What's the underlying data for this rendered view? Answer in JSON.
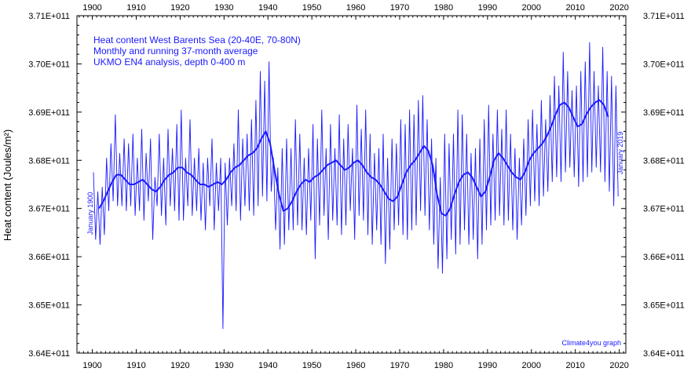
{
  "chart_data": {
    "type": "line",
    "title_lines": [
      "Heat content West Barents Sea (20-40E, 70-80N)",
      "Monthly and running 37-month average",
      "UKMO EN4 analysis, depth 0-400 m"
    ],
    "ylabel": "Heat content (Joules/m²)",
    "xlabel": "",
    "xlim": [
      1896.5,
      2021.5
    ],
    "ylim": [
      364000000000.0,
      371000000000.0
    ],
    "x_ticks": [
      1900,
      1910,
      1920,
      1930,
      1940,
      1950,
      1960,
      1970,
      1980,
      1990,
      2000,
      2010,
      2020
    ],
    "x_tick_labels": [
      "1900",
      "1910",
      "1920",
      "1930",
      "1940",
      "1950",
      "1960",
      "1970",
      "1980",
      "1990",
      "2000",
      "2010",
      "2020"
    ],
    "y_ticks": [
      364000000000.0,
      365000000000.0,
      366000000000.0,
      367000000000.0,
      368000000000.0,
      369000000000.0,
      370000000000.0,
      371000000000.0
    ],
    "y_tick_labels": [
      "3.64E+011",
      "3.65E+011",
      "3.66E+011",
      "3.67E+011",
      "3.68E+011",
      "3.69E+011",
      "3.70E+011",
      "3.71E+011"
    ],
    "left_annotation": "January 1900",
    "right_annotation": "January 2019",
    "credit": "Climate4you graph",
    "grid": false,
    "series": [
      {
        "style": "thin line",
        "color": "#1a1aff",
        "x": [
          1900,
          1901,
          1902,
          1903,
          1904,
          1905,
          1906,
          1907,
          1908,
          1909,
          1910,
          1911,
          1912,
          1913,
          1914,
          1915,
          1916,
          1917,
          1918,
          1919,
          1920,
          1921,
          1922,
          1923,
          1924,
          1925,
          1926,
          1927,
          1928,
          1929,
          1930,
          1931,
          1932,
          1933,
          1934,
          1935,
          1936,
          1937,
          1938,
          1939,
          1940,
          1941,
          1942,
          1943,
          1944,
          1945,
          1946,
          1947,
          1948,
          1949,
          1950,
          1951,
          1952,
          1953,
          1954,
          1955,
          1956,
          1957,
          1958,
          1959,
          1960,
          1961,
          1962,
          1963,
          1964,
          1965,
          1966,
          1967,
          1968,
          1969,
          1970,
          1971,
          1972,
          1973,
          1974,
          1975,
          1976,
          1977,
          1978,
          1979,
          1980,
          1981,
          1982,
          1983,
          1984,
          1985,
          1986,
          1987,
          1988,
          1989,
          1990,
          1991,
          1992,
          1993,
          1994,
          1995,
          1996,
          1997,
          1998,
          1999,
          2000,
          2001,
          2002,
          2003,
          2004,
          2005,
          2006,
          2007,
          2008,
          2009,
          2010,
          2011,
          2012,
          2013,
          2014,
          2015,
          2016,
          2017,
          2018,
          2019
        ],
        "high": [
          367750000000.0,
          367350000000.0,
          367450000000.0,
          368050000000.0,
          368350000000.0,
          368950000000.0,
          368150000000.0,
          368450000000.0,
          368350000000.0,
          368550000000.0,
          368050000000.0,
          368650000000.0,
          368150000000.0,
          368450000000.0,
          367650000000.0,
          368550000000.0,
          368050000000.0,
          368650000000.0,
          368250000000.0,
          368750000000.0,
          369050000000.0,
          368050000000.0,
          368850000000.0,
          368050000000.0,
          368250000000.0,
          367950000000.0,
          368050000000.0,
          368450000000.0,
          367950000000.0,
          368050000000.0,
          367950000000.0,
          368050000000.0,
          368350000000.0,
          369050000000.0,
          368450000000.0,
          368550000000.0,
          368850000000.0,
          369250000000.0,
          369850000000.0,
          369650000000.0,
          370050000000.0,
          368050000000.0,
          367850000000.0,
          368250000000.0,
          368450000000.0,
          368250000000.0,
          368850000000.0,
          368550000000.0,
          368050000000.0,
          368250000000.0,
          368750000000.0,
          368450000000.0,
          369050000000.0,
          368250000000.0,
          368750000000.0,
          368250000000.0,
          368950000000.0,
          368450000000.0,
          368750000000.0,
          368250000000.0,
          369150000000.0,
          368650000000.0,
          369050000000.0,
          368550000000.0,
          368150000000.0,
          368250000000.0,
          368550000000.0,
          368050000000.0,
          368450000000.0,
          368350000000.0,
          368850000000.0,
          368750000000.0,
          369050000000.0,
          368950000000.0,
          369250000000.0,
          369350000000.0,
          368850000000.0,
          368450000000.0,
          368050000000.0,
          367650000000.0,
          368550000000.0,
          368350000000.0,
          368550000000.0,
          369050000000.0,
          368950000000.0,
          368550000000.0,
          368150000000.0,
          368250000000.0,
          368450000000.0,
          368850000000.0,
          369150000000.0,
          368550000000.0,
          369050000000.0,
          368650000000.0,
          369050000000.0,
          368550000000.0,
          368250000000.0,
          368050000000.0,
          368450000000.0,
          368850000000.0,
          369050000000.0,
          368750000000.0,
          369250000000.0,
          368850000000.0,
          369350000000.0,
          369750000000.0,
          369550000000.0,
          370250000000.0,
          369850000000.0,
          369450000000.0,
          369550000000.0,
          369850000000.0,
          370050000000.0,
          370450000000.0,
          369850000000.0,
          369550000000.0,
          370350000000.0,
          369850000000.0,
          369750000000.0,
          369550000000.0
        ],
        "low": [
          366350000000.0,
          366250000000.0,
          366450000000.0,
          366950000000.0,
          367150000000.0,
          367050000000.0,
          367050000000.0,
          366950000000.0,
          367050000000.0,
          366850000000.0,
          366950000000.0,
          366750000000.0,
          367150000000.0,
          366350000000.0,
          367050000000.0,
          366850000000.0,
          366650000000.0,
          367050000000.0,
          366950000000.0,
          366750000000.0,
          366750000000.0,
          367050000000.0,
          366850000000.0,
          366950000000.0,
          366750000000.0,
          366550000000.0,
          367050000000.0,
          366550000000.0,
          366950000000.0,
          364500000000.0,
          366650000000.0,
          367050000000.0,
          366950000000.0,
          366750000000.0,
          367050000000.0,
          366950000000.0,
          366850000000.0,
          367050000000.0,
          367250000000.0,
          367150000000.0,
          367350000000.0,
          366550000000.0,
          366150000000.0,
          366250000000.0,
          366550000000.0,
          366550000000.0,
          366650000000.0,
          366550000000.0,
          366450000000.0,
          366750000000.0,
          365950000000.0,
          366650000000.0,
          366850000000.0,
          366350000000.0,
          366750000000.0,
          366650000000.0,
          366450000000.0,
          366650000000.0,
          366950000000.0,
          366350000000.0,
          366850000000.0,
          366750000000.0,
          366450000000.0,
          366250000000.0,
          366550000000.0,
          366250000000.0,
          365850000000.0,
          366150000000.0,
          366550000000.0,
          366650000000.0,
          366450000000.0,
          366350000000.0,
          366550000000.0,
          366650000000.0,
          366950000000.0,
          366850000000.0,
          366550000000.0,
          366250000000.0,
          365750000000.0,
          365650000000.0,
          365950000000.0,
          366350000000.0,
          366050000000.0,
          366250000000.0,
          366550000000.0,
          366250000000.0,
          366350000000.0,
          365950000000.0,
          366250000000.0,
          366550000000.0,
          366650000000.0,
          366750000000.0,
          366850000000.0,
          366650000000.0,
          366750000000.0,
          366550000000.0,
          366350000000.0,
          366650000000.0,
          366850000000.0,
          367050000000.0,
          367150000000.0,
          367050000000.0,
          367250000000.0,
          367350000000.0,
          367550000000.0,
          367650000000.0,
          367550000000.0,
          367750000000.0,
          367850000000.0,
          367650000000.0,
          367450000000.0,
          367550000000.0,
          367650000000.0,
          367750000000.0,
          367850000000.0,
          367750000000.0,
          367550000000.0,
          367350000000.0,
          367050000000.0,
          367250000000.0
        ]
      },
      {
        "style": "thick line",
        "color": "#1a1aff",
        "x": [
          1901.5,
          1902.5,
          1903.5,
          1904.5,
          1905.5,
          1906.5,
          1907.5,
          1908.5,
          1909.5,
          1910.5,
          1911.5,
          1912.5,
          1913.5,
          1914.5,
          1915.5,
          1916.5,
          1917.5,
          1918.5,
          1919.5,
          1920.5,
          1921.5,
          1922.5,
          1923.5,
          1924.5,
          1925.5,
          1926.5,
          1927.5,
          1928.5,
          1929.5,
          1930.5,
          1931.5,
          1932.5,
          1933.5,
          1934.5,
          1935.5,
          1936.5,
          1937.5,
          1938.5,
          1939.5,
          1940.5,
          1941.5,
          1942.5,
          1943.5,
          1944.5,
          1945.5,
          1946.5,
          1947.5,
          1948.5,
          1949.5,
          1950.5,
          1951.5,
          1952.5,
          1953.5,
          1954.5,
          1955.5,
          1956.5,
          1957.5,
          1958.5,
          1959.5,
          1960.5,
          1961.5,
          1962.5,
          1963.5,
          1964.5,
          1965.5,
          1966.5,
          1967.5,
          1968.5,
          1969.5,
          1970.5,
          1971.5,
          1972.5,
          1973.5,
          1974.5,
          1975.5,
          1976.5,
          1977.5,
          1978.5,
          1979.5,
          1980.5,
          1981.5,
          1982.5,
          1983.5,
          1984.5,
          1985.5,
          1986.5,
          1987.5,
          1988.5,
          1989.5,
          1990.5,
          1991.5,
          1992.5,
          1993.5,
          1994.5,
          1995.5,
          1996.5,
          1997.5,
          1998.5,
          1999.5,
          2000.5,
          2001.5,
          2002.5,
          2003.5,
          2004.5,
          2005.5,
          2006.5,
          2007.5,
          2008.5,
          2009.5,
          2010.5,
          2011.5,
          2012.5,
          2013.5,
          2014.5,
          2015.5,
          2016.5,
          2017.5
        ],
        "values": [
          367000000000.0,
          367150000000.0,
          367350000000.0,
          367550000000.0,
          367700000000.0,
          367700000000.0,
          367600000000.0,
          367500000000.0,
          367500000000.0,
          367550000000.0,
          367600000000.0,
          367500000000.0,
          367400000000.0,
          367350000000.0,
          367450000000.0,
          367600000000.0,
          367700000000.0,
          367750000000.0,
          367850000000.0,
          367850000000.0,
          367750000000.0,
          367700000000.0,
          367600000000.0,
          367500000000.0,
          367500000000.0,
          367450000000.0,
          367500000000.0,
          367550000000.0,
          367500000000.0,
          367600000000.0,
          367750000000.0,
          367850000000.0,
          367900000000.0,
          368000000000.0,
          368100000000.0,
          368150000000.0,
          368250000000.0,
          368450000000.0,
          368600000000.0,
          368350000000.0,
          367800000000.0,
          367300000000.0,
          366950000000.0,
          367000000000.0,
          367150000000.0,
          367350000000.0,
          367500000000.0,
          367600000000.0,
          367550000000.0,
          367650000000.0,
          367700000000.0,
          367800000000.0,
          367900000000.0,
          367950000000.0,
          368000000000.0,
          367900000000.0,
          367800000000.0,
          367850000000.0,
          367950000000.0,
          368000000000.0,
          367900000000.0,
          367750000000.0,
          367650000000.0,
          367600000000.0,
          367500000000.0,
          367350000000.0,
          367200000000.0,
          367150000000.0,
          367250000000.0,
          367500000000.0,
          367750000000.0,
          367900000000.0,
          368000000000.0,
          368150000000.0,
          368300000000.0,
          368200000000.0,
          367900000000.0,
          367300000000.0,
          366900000000.0,
          366850000000.0,
          367000000000.0,
          367300000000.0,
          367550000000.0,
          367700000000.0,
          367750000000.0,
          367650000000.0,
          367450000000.0,
          367250000000.0,
          367350000000.0,
          367650000000.0,
          368000000000.0,
          368150000000.0,
          368050000000.0,
          367900000000.0,
          367750000000.0,
          367650000000.0,
          367600000000.0,
          367750000000.0,
          368000000000.0,
          368150000000.0,
          368250000000.0,
          368350000000.0,
          368500000000.0,
          368700000000.0,
          368950000000.0,
          369150000000.0,
          369200000000.0,
          369100000000.0,
          368900000000.0,
          368700000000.0,
          368750000000.0,
          368950000000.0,
          369100000000.0,
          369200000000.0,
          369250000000.0,
          369150000000.0,
          368900000000.0
        ]
      }
    ]
  }
}
